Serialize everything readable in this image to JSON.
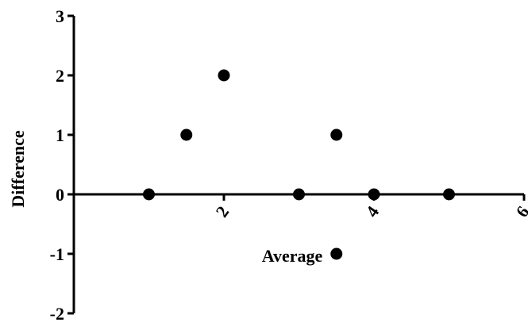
{
  "chart_data": {
    "type": "scatter",
    "title": "",
    "xlabel": "Average",
    "ylabel": "Difference",
    "xlim": [
      0,
      6
    ],
    "ylim": [
      -2,
      3
    ],
    "x_ticks": [
      2,
      4,
      6
    ],
    "y_ticks": [
      3,
      2,
      1,
      0,
      -1,
      -2
    ],
    "grid": false,
    "points": [
      {
        "x": 1.0,
        "y": 0
      },
      {
        "x": 1.5,
        "y": 1
      },
      {
        "x": 2.0,
        "y": 2
      },
      {
        "x": 3.0,
        "y": 0
      },
      {
        "x": 3.5,
        "y": 1
      },
      {
        "x": 3.5,
        "y": -1
      },
      {
        "x": 4.0,
        "y": 0
      },
      {
        "x": 5.0,
        "y": 0
      }
    ]
  }
}
